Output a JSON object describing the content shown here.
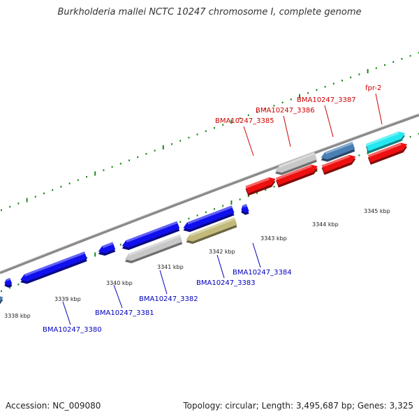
{
  "title": "Burkholderia mallei NCTC 10247 chromosome I, complete genome",
  "footer": {
    "accession": "Accession: NC_009080",
    "summary": "Topology: circular; Length: 3,495,687 bp; Genes: 3,325"
  },
  "colors": {
    "backbone": "#8a8a8a",
    "tick_dots": "#1a8a1a",
    "forward_label": "#cc0000",
    "reverse_label": "#0000bb",
    "blue": "#1010ee",
    "red": "#ee1010",
    "gray": "#c8c8c8",
    "steelblue": "#4a7fb5",
    "cyan": "#22e8f0",
    "olive": "#c2b97a"
  },
  "ticks": [
    {
      "label": "3338 kbp"
    },
    {
      "label": "3339 kbp"
    },
    {
      "label": "3340 kbp"
    },
    {
      "label": "3341 kbp"
    },
    {
      "label": "3342 kbp"
    },
    {
      "label": "3343 kbp"
    },
    {
      "label": "3344 kbp"
    },
    {
      "label": "3345 kbp"
    }
  ],
  "genes": [
    {
      "name": "BMA10247_3380",
      "strand": "reverse",
      "color": "blue"
    },
    {
      "name": "BMA10247_3381",
      "strand": "reverse",
      "color": "blue"
    },
    {
      "name": "BMA10247_3382",
      "strand": "reverse",
      "color": "gray"
    },
    {
      "name": "BMA10247_3383",
      "strand": "reverse",
      "color": "olive"
    },
    {
      "name": "BMA10247_3384",
      "strand": "reverse",
      "color": "blue"
    },
    {
      "name": "BMA10247_3385",
      "strand": "forward",
      "color": "red"
    },
    {
      "name": "BMA10247_3386",
      "strand": "forward",
      "color": "gray"
    },
    {
      "name": "BMA10247_3387",
      "strand": "forward",
      "color": "steelblue"
    },
    {
      "name": "fpr-2",
      "strand": "forward",
      "color": "cyan"
    }
  ]
}
